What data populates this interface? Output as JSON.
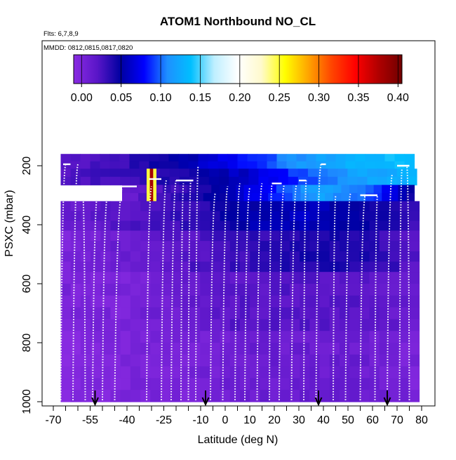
{
  "chart_data": {
    "type": "heatmap",
    "title": "ATOM1 Northbound NO_CL",
    "flights_label": "Flts: 6,7,8,9",
    "dates_label": "MMDD: 0812,0815,0817,0820",
    "xlabel": "Latitude (deg N)",
    "ylabel": "PSXC (mbar)",
    "xlim": [
      -70,
      80
    ],
    "ylim": [
      1000,
      0
    ],
    "x_ticks": [
      "-70",
      "-55",
      "-40",
      "-25",
      "-10",
      "0",
      "10",
      "20",
      "30",
      "40",
      "50",
      "60",
      "70",
      "80"
    ],
    "x_tick_values": [
      -70,
      -55,
      -40,
      -25,
      -10,
      0,
      10,
      20,
      30,
      40,
      50,
      60,
      70,
      80
    ],
    "y_ticks": [
      "200",
      "400",
      "600",
      "800",
      "1000"
    ],
    "y_tick_values": [
      200,
      400,
      600,
      800,
      1000
    ],
    "colorbar": {
      "ticks": [
        "0.00",
        "0.05",
        "0.10",
        "0.15",
        "0.20",
        "0.25",
        "0.30",
        "0.35",
        "0.40"
      ],
      "tick_values": [
        0,
        0.05,
        0.1,
        0.15,
        0.2,
        0.25,
        0.3,
        0.35,
        0.4
      ],
      "range": [
        -0.01,
        0.405
      ],
      "palette": [
        "#8a2be2",
        "#5a16c8",
        "#0000a0",
        "#0000ff",
        "#1e90ff",
        "#00bfff",
        "#bfefff",
        "#ffffff",
        "#fffacd",
        "#ffff00",
        "#ffa500",
        "#ff4500",
        "#ff0000",
        "#b00000",
        "#700000"
      ]
    },
    "heatmap_layers": [
      {
        "p_range": [
          160,
          210
        ],
        "lat_range": [
          -67,
          77
        ],
        "values": [
          0.02,
          0.03,
          0.05,
          0.08,
          0.11,
          0.13,
          0.14
        ]
      },
      {
        "p_range": [
          210,
          265
        ],
        "lat_range": [
          -67,
          78
        ],
        "values": [
          0.02,
          0.03,
          0.04,
          0.06,
          0.09,
          0.12,
          0.13
        ]
      },
      {
        "p_range": [
          265,
          320
        ],
        "lat_range": [
          -42,
          77
        ],
        "values": [
          0.01,
          0.03,
          0.05,
          0.08,
          0.12,
          0.1,
          0.04
        ]
      },
      {
        "p_range": [
          320,
          420
        ],
        "lat_range": [
          -67,
          79
        ],
        "values": [
          0.01,
          0.02,
          0.03,
          0.05,
          0.06,
          0.05,
          0.03
        ]
      },
      {
        "p_range": [
          420,
          560
        ],
        "lat_range": [
          -67,
          79
        ],
        "values": [
          0.0,
          0.01,
          0.02,
          0.03,
          0.04,
          0.04,
          0.02
        ]
      },
      {
        "p_range": [
          560,
          760
        ],
        "lat_range": [
          -67,
          79
        ],
        "values": [
          0.0,
          0.0,
          0.01,
          0.02,
          0.02,
          0.02,
          0.01
        ]
      },
      {
        "p_range": [
          760,
          1000
        ],
        "lat_range": [
          -67,
          79
        ],
        "values": [
          -0.01,
          0.0,
          0.0,
          0.01,
          0.01,
          0.01,
          0.0
        ]
      }
    ],
    "hotspot": {
      "lat_range": [
        -32,
        -28
      ],
      "p_range": [
        210,
        320
      ],
      "value": 0.33
    },
    "profiles": [
      {
        "lat_surface": -67,
        "lat_top": -65,
        "p_top": 195
      },
      {
        "lat_surface": -62,
        "lat_top": -60,
        "p_top": 195
      },
      {
        "lat_surface": -57,
        "lat_top": -58,
        "p_top": 290
      },
      {
        "lat_surface": -54,
        "lat_top": -52,
        "p_top": 290
      },
      {
        "lat_surface": -50,
        "lat_top": -48,
        "p_top": 300
      },
      {
        "lat_surface": -45,
        "lat_top": -42,
        "p_top": 280
      },
      {
        "lat_surface": -32,
        "lat_top": -30,
        "p_top": 270
      },
      {
        "lat_surface": -26,
        "lat_top": -24,
        "p_top": 250
      },
      {
        "lat_surface": -22,
        "lat_top": -20,
        "p_top": 250
      },
      {
        "lat_surface": -18,
        "lat_top": -17,
        "p_top": 260
      },
      {
        "lat_surface": -15,
        "lat_top": -14,
        "p_top": 250
      },
      {
        "lat_surface": -12,
        "lat_top": -11,
        "p_top": 200
      },
      {
        "lat_surface": -6,
        "lat_top": -4,
        "p_top": 290
      },
      {
        "lat_surface": -1,
        "lat_top": 1,
        "p_top": 270
      },
      {
        "lat_surface": 4,
        "lat_top": 6,
        "p_top": 260
      },
      {
        "lat_surface": 8,
        "lat_top": 10,
        "p_top": 275
      },
      {
        "lat_surface": 13,
        "lat_top": 15,
        "p_top": 260
      },
      {
        "lat_surface": 18,
        "lat_top": 19,
        "p_top": 265
      },
      {
        "lat_surface": 22,
        "lat_top": 24,
        "p_top": 265
      },
      {
        "lat_surface": 27,
        "lat_top": 29,
        "p_top": 265
      },
      {
        "lat_surface": 32,
        "lat_top": 33,
        "p_top": 250
      },
      {
        "lat_surface": 37,
        "lat_top": 39,
        "p_top": 195
      },
      {
        "lat_surface": 44,
        "lat_top": 45,
        "p_top": 300
      },
      {
        "lat_surface": 49,
        "lat_top": 51,
        "p_top": 295
      },
      {
        "lat_surface": 55,
        "lat_top": 57,
        "p_top": 300
      },
      {
        "lat_surface": 61,
        "lat_top": 62,
        "p_top": 300
      },
      {
        "lat_surface": 66,
        "lat_top": 68,
        "p_top": 230
      },
      {
        "lat_surface": 71,
        "lat_top": 72,
        "p_top": 210
      },
      {
        "lat_surface": 75,
        "lat_top": 74,
        "p_top": 200
      }
    ],
    "flat_legs": [
      {
        "lat_range": [
          -66,
          -63
        ],
        "p": 195
      },
      {
        "lat_range": [
          -42,
          -36
        ],
        "p": 270
      },
      {
        "lat_range": [
          -31,
          -26
        ],
        "p": 245
      },
      {
        "lat_range": [
          -20,
          -13
        ],
        "p": 250
      },
      {
        "lat_range": [
          19,
          23
        ],
        "p": 260
      },
      {
        "lat_range": [
          30,
          33
        ],
        "p": 250
      },
      {
        "lat_range": [
          39,
          41
        ],
        "p": 195
      },
      {
        "lat_range": [
          55,
          62
        ],
        "p": 300
      },
      {
        "lat_range": [
          70,
          75
        ],
        "p": 200
      }
    ],
    "arrows_lat": [
      -53,
      -8,
      38,
      66
    ]
  }
}
